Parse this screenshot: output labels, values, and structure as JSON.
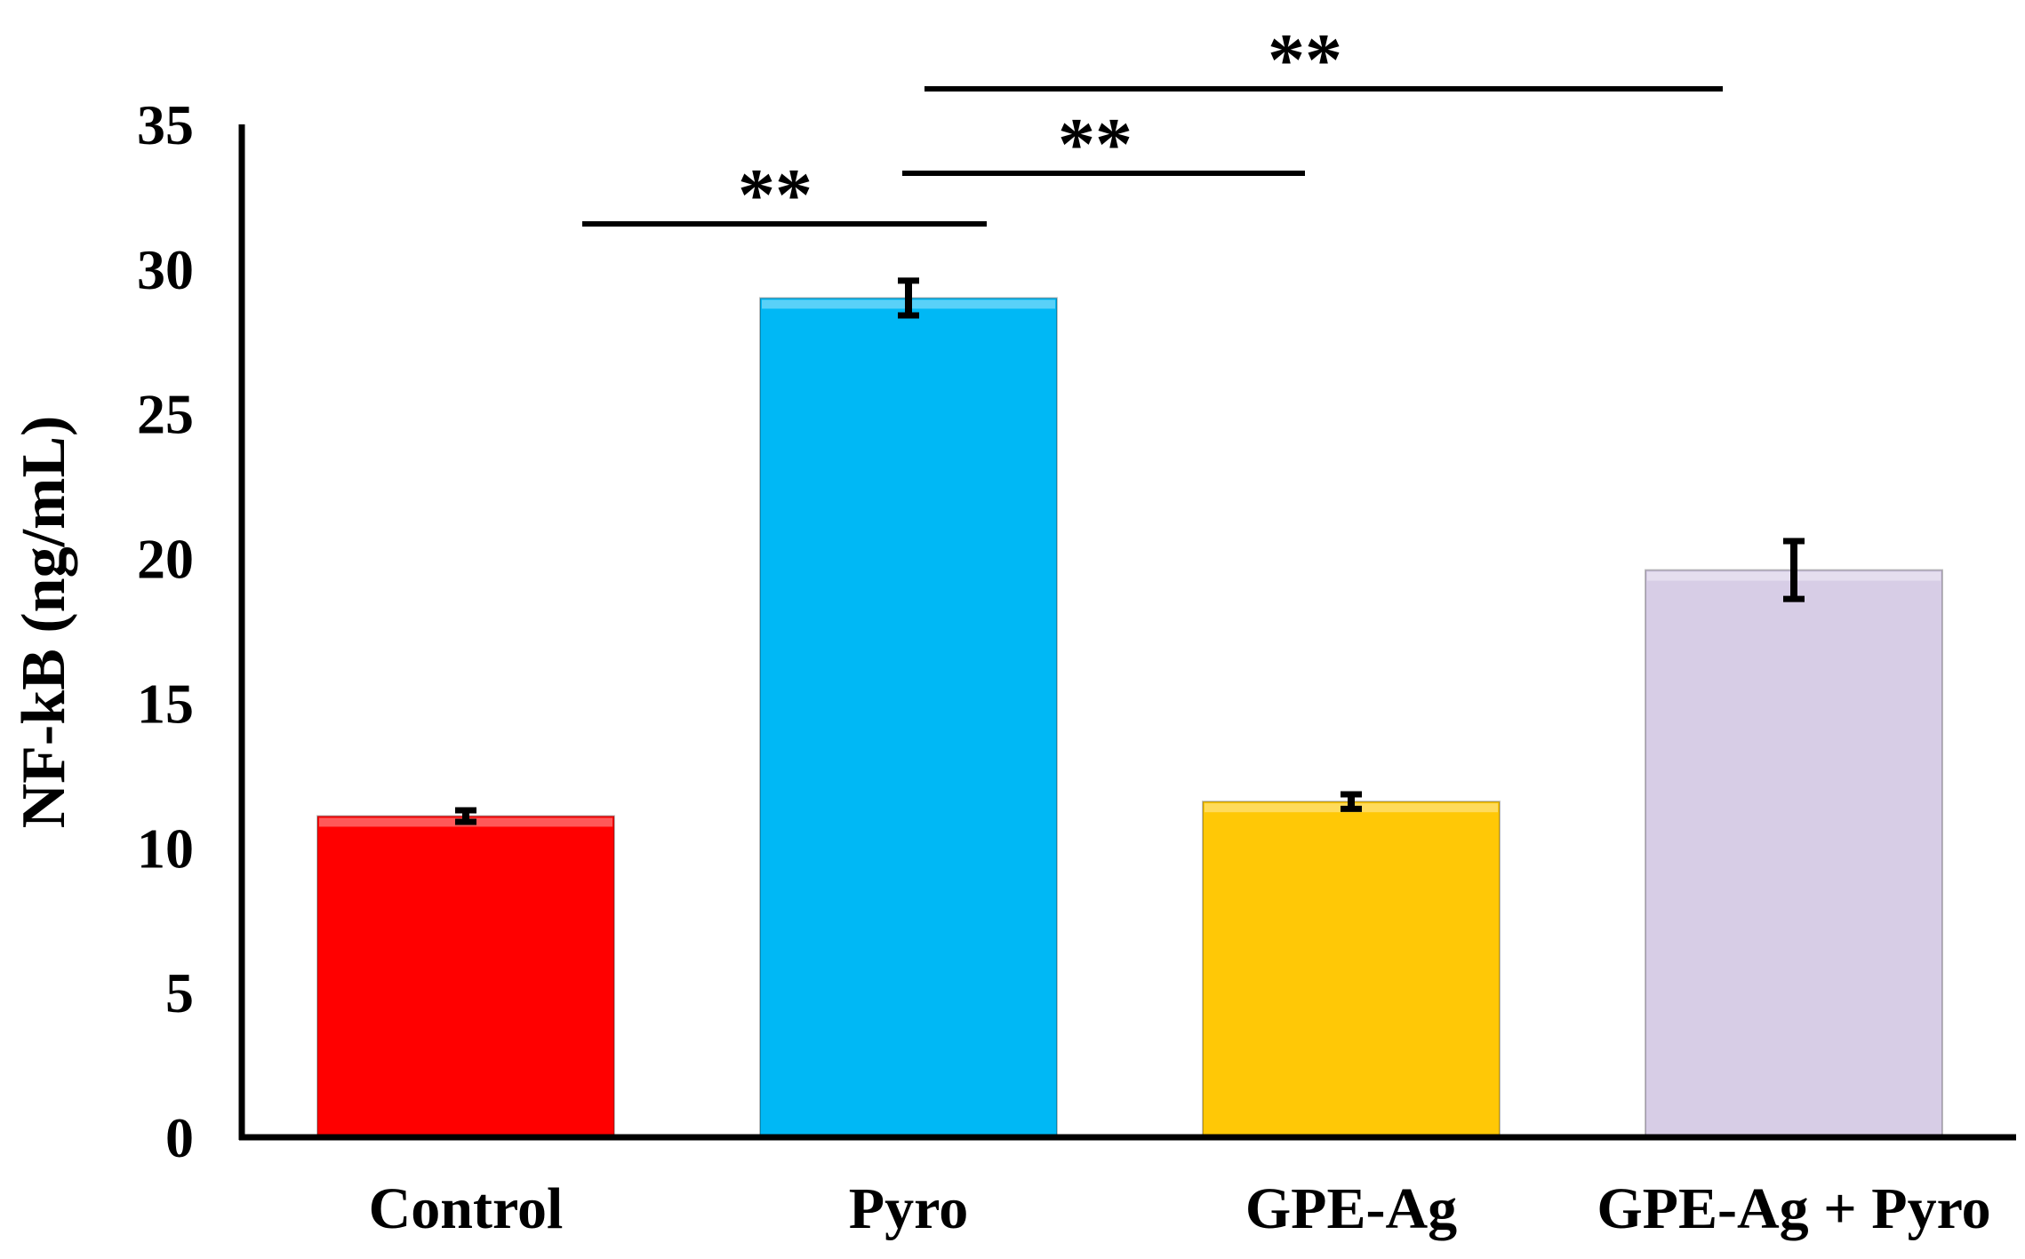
{
  "chart_data": {
    "type": "bar",
    "title": "",
    "xlabel": "",
    "ylabel": "NF-kB (ng/mL)",
    "ylim": [
      0,
      35
    ],
    "yticks": [
      0,
      5,
      10,
      15,
      20,
      25,
      30,
      35
    ],
    "grid": false,
    "legend": "none",
    "categories": [
      "Control",
      "Pyro",
      "GPE-Ag",
      "GPE-Ag + Pyro"
    ],
    "values": [
      11.1,
      29.0,
      11.6,
      19.6
    ],
    "errors": [
      0.2,
      0.6,
      0.25,
      1.0
    ],
    "colors": [
      "#ff0000",
      "#00b8f5",
      "#ffc806",
      "#d7cde6"
    ],
    "significance": [
      {
        "from": "Control",
        "to": "Pyro",
        "label": "**"
      },
      {
        "from": "Pyro",
        "to": "GPE-Ag",
        "label": "**"
      },
      {
        "from": "Pyro",
        "to": "GPE-Ag + Pyro",
        "label": "**"
      }
    ]
  }
}
